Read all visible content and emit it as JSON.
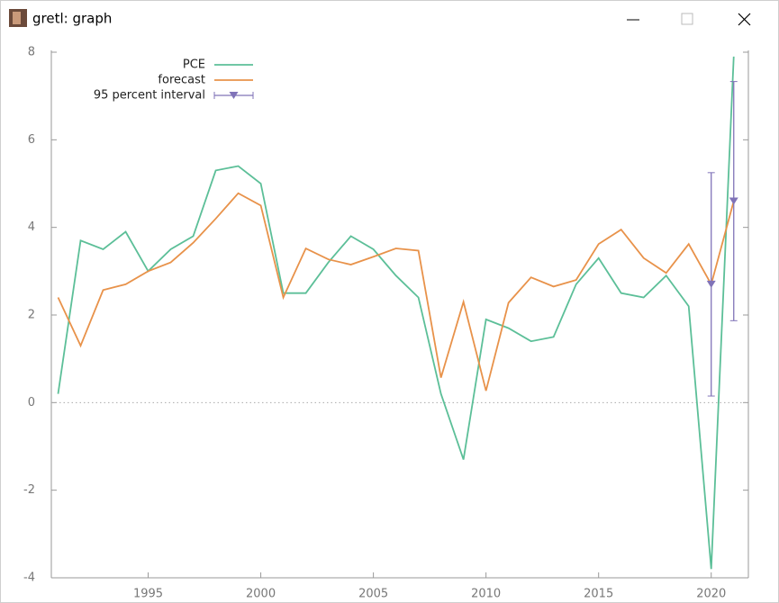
{
  "window": {
    "title": "gretl: graph"
  },
  "chart_data": {
    "type": "line",
    "x": [
      1991,
      1992,
      1993,
      1994,
      1995,
      1996,
      1997,
      1998,
      1999,
      2000,
      2001,
      2002,
      2003,
      2004,
      2005,
      2006,
      2007,
      2008,
      2009,
      2010,
      2011,
      2012,
      2013,
      2014,
      2015,
      2016,
      2017,
      2018,
      2019,
      2020,
      2021
    ],
    "series": [
      {
        "name": "PCE",
        "color": "#5cbf98",
        "values": [
          0.2,
          3.7,
          3.5,
          3.9,
          3.0,
          3.5,
          3.8,
          5.3,
          5.4,
          5.0,
          2.5,
          2.5,
          3.2,
          3.8,
          3.5,
          2.9,
          2.4,
          0.2,
          -1.3,
          1.9,
          1.7,
          1.4,
          1.5,
          2.7,
          3.3,
          2.5,
          2.4,
          2.9,
          2.2,
          -3.8,
          7.9
        ]
      },
      {
        "name": "forecast",
        "color": "#e8924a",
        "values": [
          2.4,
          1.3,
          2.57,
          2.7,
          3.0,
          3.2,
          3.65,
          4.2,
          4.78,
          4.5,
          2.4,
          3.52,
          3.27,
          3.15,
          3.33,
          3.52,
          3.47,
          0.57,
          2.3,
          0.27,
          2.28,
          2.86,
          2.65,
          2.8,
          3.62,
          3.95,
          3.3,
          2.96,
          3.62,
          2.7,
          4.6
        ]
      }
    ],
    "interval": {
      "name": "95 percent interval",
      "color": "#8073b8",
      "x": [
        2020,
        2021
      ],
      "center": [
        2.7,
        4.6
      ],
      "low": [
        0.15,
        1.87
      ],
      "high": [
        5.25,
        7.33
      ]
    },
    "xlim": [
      1990.7,
      2021.65
    ],
    "xticks": [
      1995,
      2000,
      2005,
      2010,
      2015,
      2020
    ],
    "ylim": [
      -4,
      8
    ],
    "yticks": [
      -4,
      -2,
      0,
      2,
      4,
      6,
      8
    ],
    "zero_line": true,
    "legend": "top-left"
  }
}
